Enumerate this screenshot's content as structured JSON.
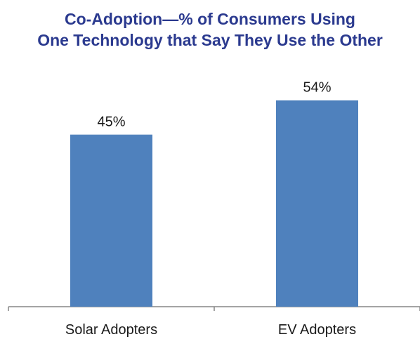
{
  "chart_data": {
    "type": "bar",
    "title": [
      "Co-Adoption—% of Consumers Using",
      "One Technology that Say They Use the Other"
    ],
    "categories": [
      "Solar Adopters",
      "EV Adopters"
    ],
    "values": [
      45,
      54
    ],
    "value_labels": [
      "45%",
      "54%"
    ],
    "ylim": [
      0,
      60
    ],
    "grid": false,
    "legend": "none"
  },
  "colors": {
    "title": "#2b3a8f",
    "bar": "#4f81bd",
    "axis": "#868686",
    "text": "#1a1a1a"
  }
}
